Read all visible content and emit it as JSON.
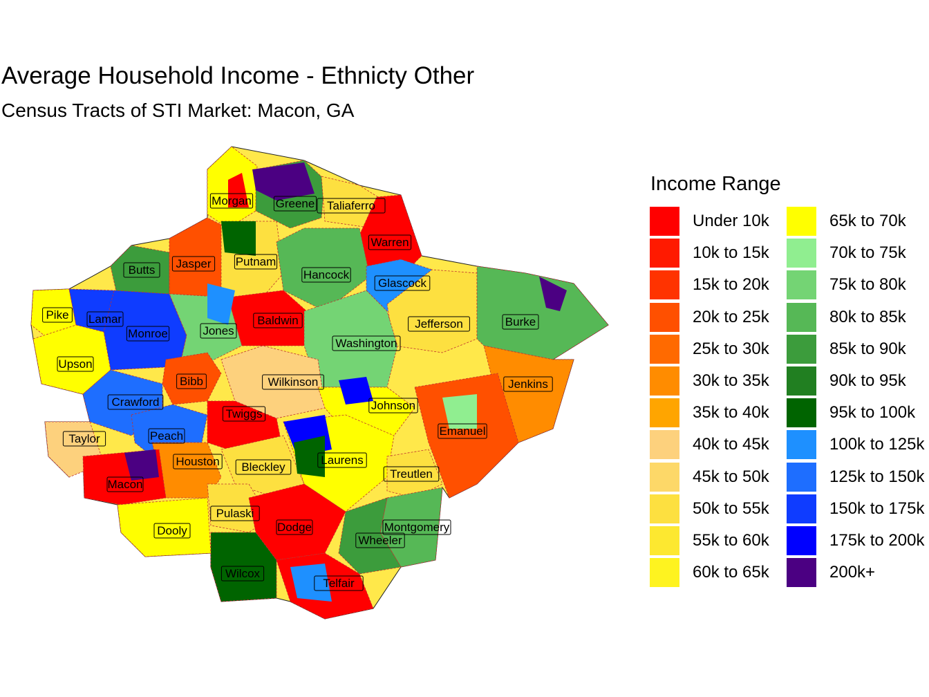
{
  "title": "Average Household Income - Ethnicty Other",
  "subtitle": "Census Tracts of STI Market: Macon, GA",
  "legend": {
    "title": "Income Range",
    "items": [
      {
        "label": "Under 10k",
        "color": "#ff0000"
      },
      {
        "label": "10k to 15k",
        "color": "#ff1a00"
      },
      {
        "label": "15k to 20k",
        "color": "#ff3300"
      },
      {
        "label": "20k to 25k",
        "color": "#ff5000"
      },
      {
        "label": "25k to 30k",
        "color": "#ff6a00"
      },
      {
        "label": "30k to 35k",
        "color": "#ff8c00"
      },
      {
        "label": "35k to 40k",
        "color": "#ffa500"
      },
      {
        "label": "40k to 45k",
        "color": "#fdd17d"
      },
      {
        "label": "45k to 50k",
        "color": "#fdd868"
      },
      {
        "label": "50k to 55k",
        "color": "#fde040"
      },
      {
        "label": "55k to 60k",
        "color": "#fde830"
      },
      {
        "label": "60k to 65k",
        "color": "#fef320"
      },
      {
        "label": "65k to 70k",
        "color": "#ffff00"
      },
      {
        "label": "70k to 75k",
        "color": "#90ee90"
      },
      {
        "label": "75k to 80k",
        "color": "#74d474"
      },
      {
        "label": "80k to 85k",
        "color": "#56b856"
      },
      {
        "label": "85k to 90k",
        "color": "#3c9c3c"
      },
      {
        "label": "90k to 95k",
        "color": "#217f21"
      },
      {
        "label": "95k to 100k",
        "color": "#006400"
      },
      {
        "label": "100k to 125k",
        "color": "#1e90ff"
      },
      {
        "label": "125k to 150k",
        "color": "#1e6eff"
      },
      {
        "label": "150k to 175k",
        "color": "#0f3cff"
      },
      {
        "label": "175k to 200k",
        "color": "#0000ff"
      },
      {
        "label": "200k+",
        "color": "#4b0082"
      }
    ]
  },
  "counties": [
    {
      "name": "Morgan",
      "color": "#ffff00"
    },
    {
      "name": "Greene",
      "color": "#3c9c3c"
    },
    {
      "name": "Taliaferro",
      "color": "#fde040"
    },
    {
      "name": "Warren",
      "color": "#ff0000"
    },
    {
      "name": "Butts",
      "color": "#3c9c3c"
    },
    {
      "name": "Jasper",
      "color": "#ff5000"
    },
    {
      "name": "Putnam",
      "color": "#fde040"
    },
    {
      "name": "Hancock",
      "color": "#56b856"
    },
    {
      "name": "Glascock",
      "color": "#1e90ff"
    },
    {
      "name": "Pike",
      "color": "#ffff00"
    },
    {
      "name": "Lamar",
      "color": "#0f3cff"
    },
    {
      "name": "Monroe",
      "color": "#0f3cff"
    },
    {
      "name": "Jones",
      "color": "#74d474"
    },
    {
      "name": "Baldwin",
      "color": "#ff0000"
    },
    {
      "name": "Jefferson",
      "color": "#fde040"
    },
    {
      "name": "Burke",
      "color": "#56b856"
    },
    {
      "name": "Washington",
      "color": "#74d474"
    },
    {
      "name": "Upson",
      "color": "#ffff00"
    },
    {
      "name": "Bibb",
      "color": "#ff5000"
    },
    {
      "name": "Wilkinson",
      "color": "#fdd17d"
    },
    {
      "name": "Jenkins",
      "color": "#ff8c00"
    },
    {
      "name": "Crawford",
      "color": "#1e6eff"
    },
    {
      "name": "Twiggs",
      "color": "#ff0000"
    },
    {
      "name": "Johnson",
      "color": "#ffff00"
    },
    {
      "name": "Taylor",
      "color": "#fdd17d"
    },
    {
      "name": "Peach",
      "color": "#1e6eff"
    },
    {
      "name": "Emanuel",
      "color": "#ff5000"
    },
    {
      "name": "Houston",
      "color": "#ff8c00"
    },
    {
      "name": "Laurens",
      "color": "#ffff00"
    },
    {
      "name": "Bleckley",
      "color": "#fde040"
    },
    {
      "name": "Treutlen",
      "color": "#fde040"
    },
    {
      "name": "Macon",
      "color": "#ff0000"
    },
    {
      "name": "Pulaski",
      "color": "#fde040"
    },
    {
      "name": "Dodge",
      "color": "#ff0000"
    },
    {
      "name": "Montgomery",
      "color": "#56b856"
    },
    {
      "name": "Dooly",
      "color": "#ffff00"
    },
    {
      "name": "Wheeler",
      "color": "#3c9c3c"
    },
    {
      "name": "Wilcox",
      "color": "#006400"
    },
    {
      "name": "Telfair",
      "color": "#ff0000"
    }
  ]
}
